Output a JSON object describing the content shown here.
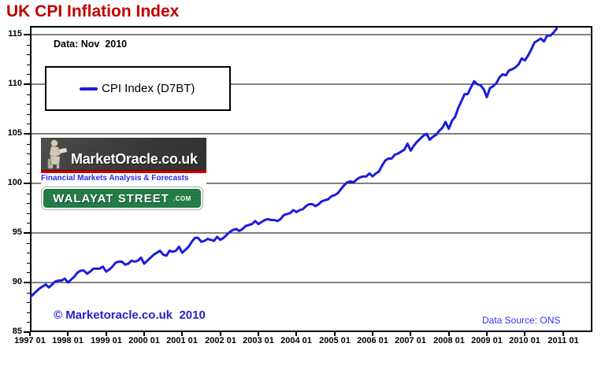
{
  "title": "UK CPI Inflation Index",
  "annotations": {
    "data_note": "Data: Nov  2010",
    "copyright": "© Marketoracle.co.uk  2010",
    "data_source": "Data Source: ONS"
  },
  "legend": {
    "label": "CPI Index (D7BT)"
  },
  "logos": {
    "market_oracle": {
      "name": "MarketOracle.co.uk",
      "tagline": "Financial Markets Analysis & Forecasts"
    },
    "walayat": {
      "name": "WALAYAT STREET",
      "suffix": ".COM"
    }
  },
  "colors": {
    "title_red": "#c00000",
    "line_blue": "#1c1cdb",
    "copyright_blue": "#2323cc",
    "source_blue": "#3333ff",
    "tagline_blue": "#2a2af0",
    "sign_green": "#1e7b42",
    "grid_black": "#000000"
  },
  "chart_data": {
    "type": "line",
    "title": "UK CPI Inflation Index",
    "xlabel": "",
    "ylabel": "",
    "grid": "horizontal",
    "legend_position": "top-left",
    "frequency": "monthly",
    "x_start": "1997-01",
    "x_end": "2010-11",
    "x_tick_labels": [
      "1997 01",
      "1998 01",
      "1999 01",
      "2000 01",
      "2001 01",
      "2002 01",
      "2003 01",
      "2004 01",
      "2005 01",
      "2006 01",
      "2007 01",
      "2008 01",
      "2009 01",
      "2010 01",
      "2011 01"
    ],
    "y_ticks": [
      85,
      90,
      95,
      100,
      105,
      110,
      115
    ],
    "ylim": [
      85,
      115.9
    ],
    "series": [
      {
        "name": "CPI Index (D7BT)",
        "color": "#1c1cdb",
        "values": [
          88.5,
          88.8,
          89.1,
          89.4,
          89.6,
          89.8,
          89.5,
          89.8,
          90.1,
          90.2,
          90.2,
          90.4,
          90.0,
          90.3,
          90.6,
          91.0,
          91.2,
          91.2,
          90.9,
          91.1,
          91.4,
          91.4,
          91.4,
          91.6,
          91.1,
          91.3,
          91.6,
          92.0,
          92.1,
          92.1,
          91.8,
          91.9,
          92.2,
          92.1,
          92.2,
          92.5,
          91.9,
          92.2,
          92.5,
          92.8,
          93.0,
          93.2,
          92.8,
          92.7,
          93.2,
          93.1,
          93.2,
          93.6,
          93.0,
          93.3,
          93.6,
          94.1,
          94.5,
          94.5,
          94.1,
          94.2,
          94.4,
          94.3,
          94.2,
          94.6,
          94.3,
          94.5,
          94.8,
          95.1,
          95.3,
          95.4,
          95.2,
          95.4,
          95.7,
          95.8,
          95.9,
          96.2,
          95.9,
          96.1,
          96.3,
          96.4,
          96.3,
          96.3,
          96.2,
          96.4,
          96.8,
          96.9,
          97.0,
          97.3,
          97.1,
          97.3,
          97.4,
          97.7,
          97.9,
          97.9,
          97.7,
          97.9,
          98.2,
          98.3,
          98.4,
          98.7,
          98.8,
          99.0,
          99.4,
          99.8,
          100.1,
          100.2,
          100.1,
          100.4,
          100.6,
          100.7,
          100.7,
          101.0,
          100.7,
          101.0,
          101.2,
          101.8,
          102.3,
          102.5,
          102.5,
          102.9,
          103.0,
          103.2,
          103.4,
          104.0,
          103.3,
          103.8,
          104.2,
          104.5,
          104.8,
          105.0,
          104.4,
          104.7,
          104.9,
          105.3,
          105.6,
          106.2,
          105.5,
          106.3,
          106.7,
          107.6,
          108.3,
          109.0,
          109.0,
          109.7,
          110.3,
          110.0,
          109.9,
          109.5,
          108.7,
          109.6,
          109.8,
          110.1,
          110.7,
          111.0,
          110.9,
          111.4,
          111.5,
          111.7,
          112.0,
          112.6,
          112.4,
          112.9,
          113.5,
          114.2,
          114.4,
          114.6,
          114.3,
          114.9,
          114.9,
          115.2,
          115.6
        ]
      }
    ]
  }
}
